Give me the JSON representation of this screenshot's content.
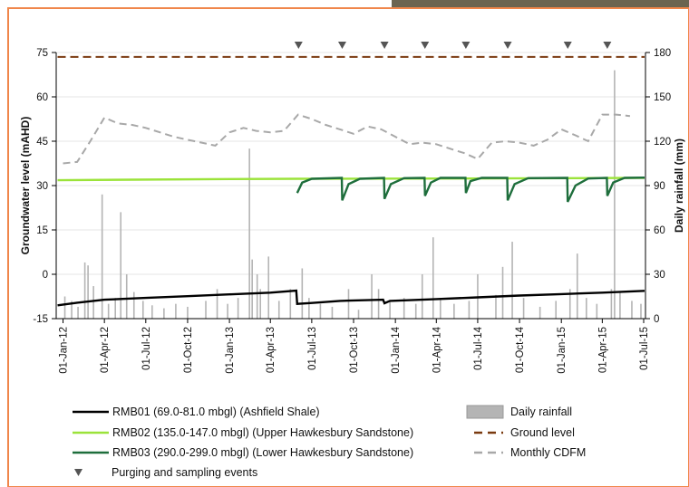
{
  "chart_data": {
    "type": "line",
    "y_label": "Groundwater level (mAHD)",
    "y2_label": "Daily rainfall (mm)",
    "xlim": [
      "2011-12-17",
      "2015-07-05"
    ],
    "xticks": [
      {
        "value": "2012-01-01",
        "label": "01-Jan-12"
      },
      {
        "value": "2012-04-01",
        "label": "01-Apr-12"
      },
      {
        "value": "2012-07-01",
        "label": "01-Jul-12"
      },
      {
        "value": "2012-10-01",
        "label": "01-Oct-12"
      },
      {
        "value": "2013-01-01",
        "label": "01-Jan-13"
      },
      {
        "value": "2013-04-01",
        "label": "01-Apr-13"
      },
      {
        "value": "2013-07-01",
        "label": "01-Jul-13"
      },
      {
        "value": "2013-10-01",
        "label": "01-Oct-13"
      },
      {
        "value": "2014-01-01",
        "label": "01-Jan-14"
      },
      {
        "value": "2014-04-01",
        "label": "01-Apr-14"
      },
      {
        "value": "2014-07-01",
        "label": "01-Jul-14"
      },
      {
        "value": "2014-10-01",
        "label": "01-Oct-14"
      },
      {
        "value": "2015-01-01",
        "label": "01-Jan-15"
      },
      {
        "value": "2015-04-01",
        "label": "01-Apr-15"
      },
      {
        "value": "2015-07-01",
        "label": "01-Jul-15"
      }
    ],
    "ylim": [
      -15,
      75
    ],
    "yticks": [
      -15,
      0,
      15,
      30,
      45,
      60,
      75
    ],
    "y2lim": [
      0,
      180
    ],
    "y2ticks": [
      0,
      30,
      60,
      90,
      120,
      150,
      180
    ],
    "grid": true,
    "series": [
      {
        "name": "RMB01 (69.0-81.0 mbgl) (Ashfield Shale)",
        "type": "line",
        "color": "#000000",
        "line_style": "solid",
        "x": [
          "2011-12-20",
          "2012-02-01",
          "2012-04-01",
          "2012-07-01",
          "2012-10-01",
          "2013-01-01",
          "2013-04-01",
          "2013-05-28",
          "2013-05-30",
          "2013-07-01",
          "2013-09-01",
          "2013-12-05",
          "2013-12-08",
          "2013-12-20",
          "2014-04-01",
          "2014-07-01",
          "2014-10-01",
          "2015-01-01",
          "2015-04-01",
          "2015-07-03"
        ],
        "values": [
          -10.5,
          -9.6,
          -8.6,
          -8,
          -7.4,
          -6.8,
          -6.2,
          -5.5,
          -10,
          -9.7,
          -9,
          -8.6,
          -9.8,
          -9,
          -8.4,
          -7.8,
          -7.2,
          -6.7,
          -6.2,
          -5.6
        ]
      },
      {
        "name": "RMB02 (135.0-147.0 mbgl) (Upper Hawkesbury Sandstone)",
        "type": "line",
        "color": "#9be33a",
        "line_style": "solid",
        "x": [
          "2011-12-20",
          "2012-06-01",
          "2013-01-01",
          "2013-06-01",
          "2014-06-01",
          "2015-07-03"
        ],
        "values": [
          31.8,
          32,
          32.2,
          32.3,
          32.4,
          32.6
        ]
      },
      {
        "name": "RMB03 (290.0-299.0 mbgl) (Lower Hawkesbury Sandstone)",
        "type": "line",
        "color": "#1e6e3c",
        "line_style": "solid",
        "x": [
          "2013-05-30",
          "2013-06-10",
          "2013-07-01",
          "2013-09-05",
          "2013-09-06",
          "2013-09-20",
          "2013-10-15",
          "2013-12-07",
          "2013-12-08",
          "2013-12-22",
          "2014-01-20",
          "2014-03-06",
          "2014-03-07",
          "2014-03-20",
          "2014-04-10",
          "2014-06-04",
          "2014-06-05",
          "2014-06-15",
          "2014-07-10",
          "2014-09-04",
          "2014-09-05",
          "2014-09-20",
          "2014-10-20",
          "2015-01-14",
          "2015-01-15",
          "2015-02-01",
          "2015-03-01",
          "2015-04-11",
          "2015-04-12",
          "2015-04-25",
          "2015-05-20",
          "2015-07-03"
        ],
        "values": [
          27.5,
          31,
          32.3,
          32.6,
          25,
          30.5,
          32.3,
          32.6,
          25.5,
          30.5,
          32.5,
          32.6,
          26.5,
          31,
          32.6,
          32.6,
          27.5,
          31.5,
          32.6,
          32.6,
          25,
          30.5,
          32.5,
          32.6,
          24.5,
          30,
          32.4,
          32.6,
          26.5,
          31,
          32.6,
          32.7
        ]
      },
      {
        "name": "Purging and sampling events",
        "type": "marker",
        "color": "#555555",
        "x": [
          "2013-06-02",
          "2013-09-06",
          "2013-12-08",
          "2014-03-07",
          "2014-06-05",
          "2014-09-05",
          "2015-01-15",
          "2015-04-12"
        ]
      },
      {
        "name": "Daily rainfall",
        "type": "bar",
        "axis": "y2",
        "color": "#b4b4b4",
        "x": [
          "2012-01-05",
          "2012-01-20",
          "2012-02-03",
          "2012-02-18",
          "2012-02-25",
          "2012-03-08",
          "2012-03-27",
          "2012-04-10",
          "2012-04-25",
          "2012-05-07",
          "2012-05-20",
          "2012-06-05",
          "2012-06-25",
          "2012-07-15",
          "2012-08-10",
          "2012-09-05",
          "2012-10-01",
          "2012-11-10",
          "2012-12-05",
          "2012-12-28",
          "2013-01-20",
          "2013-02-14",
          "2013-02-20",
          "2013-03-03",
          "2013-03-10",
          "2013-03-28",
          "2013-04-20",
          "2013-05-15",
          "2013-06-10",
          "2013-06-25",
          "2013-07-20",
          "2013-08-15",
          "2013-09-20",
          "2013-10-12",
          "2013-11-10",
          "2013-11-25",
          "2013-12-20",
          "2014-01-20",
          "2014-02-15",
          "2014-03-01",
          "2014-03-25",
          "2014-04-10",
          "2014-05-10",
          "2014-06-12",
          "2014-07-01",
          "2014-08-10",
          "2014-08-25",
          "2014-09-15",
          "2014-10-10",
          "2014-11-15",
          "2014-12-20",
          "2015-01-20",
          "2015-02-05",
          "2015-02-25",
          "2015-03-20",
          "2015-04-21",
          "2015-04-28",
          "2015-05-10",
          "2015-06-05",
          "2015-06-25"
        ],
        "values": [
          15,
          12,
          8,
          38,
          36,
          22,
          84,
          10,
          14,
          72,
          30,
          18,
          12,
          9,
          7,
          10,
          8,
          12,
          20,
          10,
          14,
          115,
          40,
          30,
          20,
          42,
          12,
          20,
          34,
          14,
          10,
          8,
          20,
          6,
          30,
          20,
          12,
          14,
          10,
          30,
          55,
          14,
          10,
          12,
          30,
          16,
          35,
          52,
          14,
          8,
          12,
          20,
          44,
          14,
          10,
          20,
          168,
          18,
          12,
          10
        ]
      },
      {
        "name": "Ground level",
        "type": "line",
        "color": "#7a3a10",
        "line_style": "dashed",
        "x": [
          "2011-12-20",
          "2015-07-03"
        ],
        "values": [
          73.5,
          73.5
        ]
      },
      {
        "name": "Monthly CDFM",
        "type": "line",
        "axis": "y2",
        "color": "#a8a8a8",
        "line_style": "dashed",
        "x": [
          "2012-01-01",
          "2012-02-01",
          "2012-03-01",
          "2012-04-01",
          "2012-05-01",
          "2012-06-01",
          "2012-07-01",
          "2012-08-01",
          "2012-09-01",
          "2012-10-01",
          "2012-11-01",
          "2012-12-01",
          "2013-01-01",
          "2013-02-01",
          "2013-03-01",
          "2013-04-01",
          "2013-05-01",
          "2013-06-01",
          "2013-07-01",
          "2013-08-01",
          "2013-09-01",
          "2013-10-01",
          "2013-11-01",
          "2013-12-01",
          "2014-01-01",
          "2014-02-01",
          "2014-03-01",
          "2014-04-01",
          "2014-05-01",
          "2014-06-01",
          "2014-07-01",
          "2014-08-01",
          "2014-09-01",
          "2014-10-01",
          "2014-11-01",
          "2014-12-01",
          "2015-01-01",
          "2015-02-01",
          "2015-03-01",
          "2015-04-01",
          "2015-05-01",
          "2015-06-01"
        ],
        "values": [
          105,
          106,
          120,
          136,
          132,
          131,
          129,
          126,
          123,
          121,
          119,
          117,
          126,
          129,
          127,
          126,
          127,
          138,
          135,
          131,
          128,
          125,
          130,
          128,
          123,
          118,
          119,
          118,
          115,
          112,
          108,
          119,
          120,
          119,
          117,
          121,
          128,
          124,
          120,
          138,
          138,
          137
        ]
      }
    ]
  }
}
